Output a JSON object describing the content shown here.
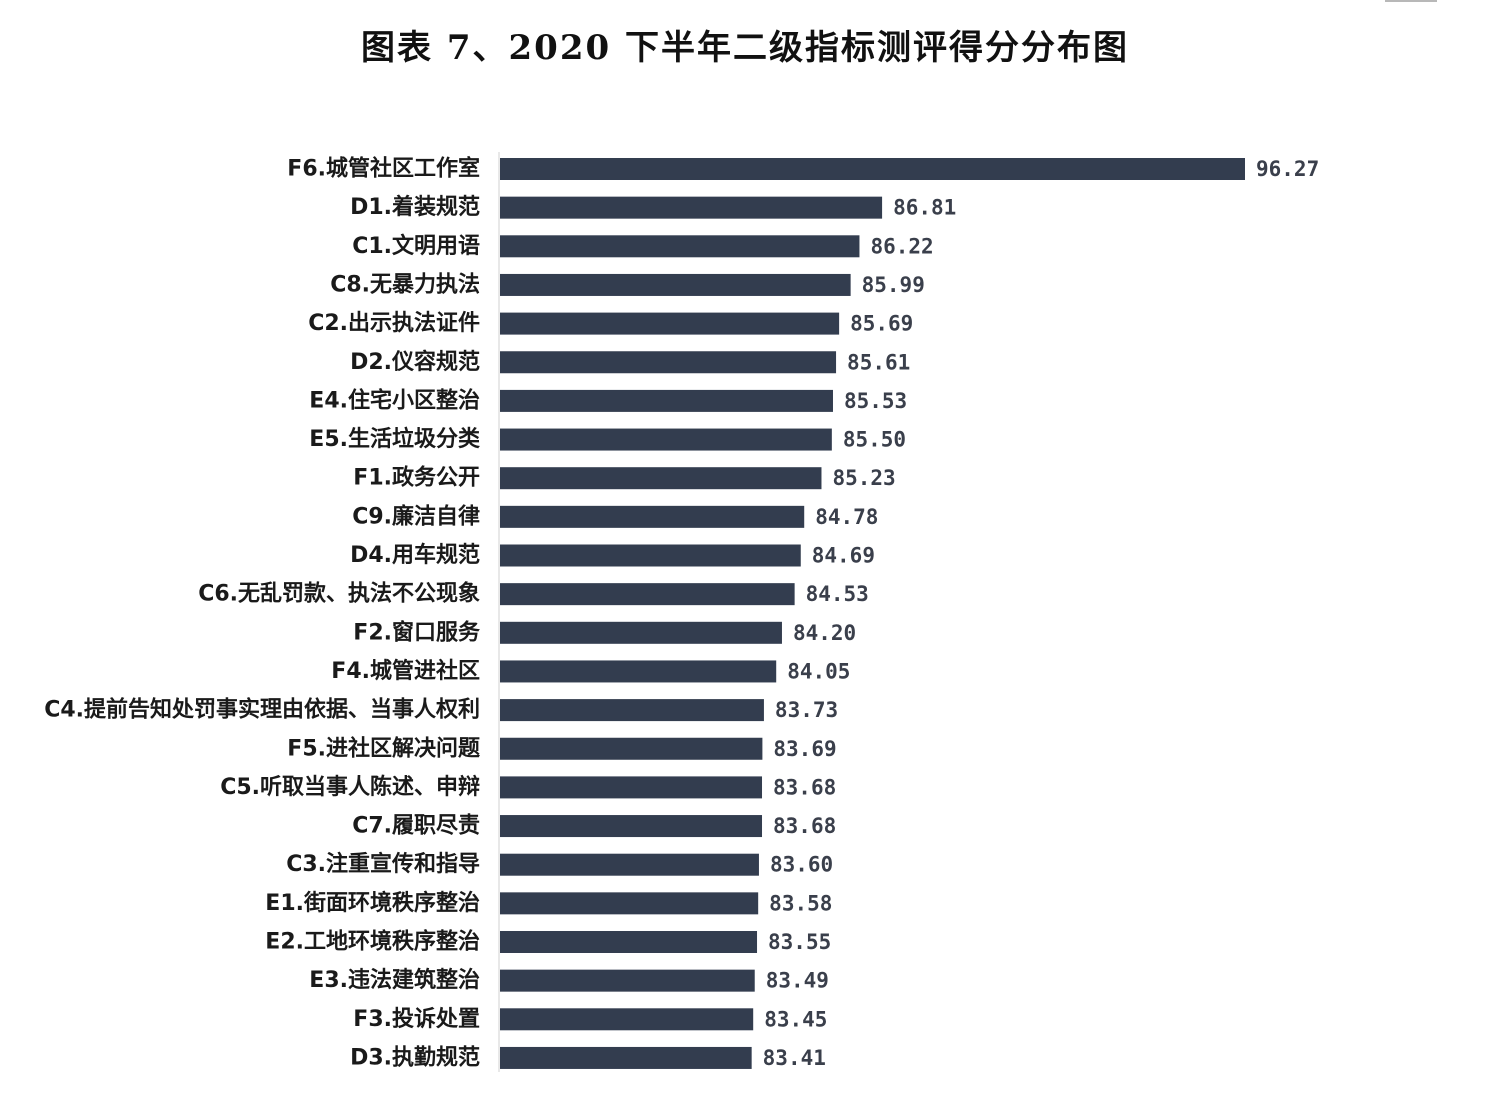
{
  "chart_data": {
    "type": "bar",
    "orientation": "horizontal",
    "title": "图表 7、2020 下半年二级指标测评得分分布图",
    "xlabel": "",
    "ylabel": "",
    "grid": false,
    "bar_color": "#333d4f",
    "value_label_color": "#3a3f4b",
    "categories": [
      "F6.城管社区工作室",
      "D1.着装规范",
      "C1.文明用语",
      "C8.无暴力执法",
      "C2.出示执法证件",
      "D2.仪容规范",
      "E4.住宅小区整治",
      "E5.生活垃圾分类",
      "F1.政务公开",
      "C9.廉洁自律",
      "D4.用车规范",
      "C6.无乱罚款、执法不公现象",
      "F2.窗口服务",
      "F4.城管进社区",
      "C4.提前告知处罚事实理由依据、当事人权利",
      "F5.进社区解决问题",
      "C5.听取当事人陈述、申辩",
      "C7.履职尽责",
      "C3.注重宣传和指导",
      "E1.街面环境秩序整治",
      "E2.工地环境秩序整治",
      "E3.违法建筑整治",
      "F3.投诉处置",
      "D3.执勤规范"
    ],
    "values": [
      96.27,
      86.81,
      86.22,
      85.99,
      85.69,
      85.61,
      85.53,
      85.5,
      85.23,
      84.78,
      84.69,
      84.53,
      84.2,
      84.05,
      83.73,
      83.69,
      83.68,
      83.68,
      83.6,
      83.58,
      83.55,
      83.49,
      83.45,
      83.41
    ],
    "value_labels": [
      "96.27",
      "86.81",
      "86.22",
      "85.99",
      "85.69",
      "85.61",
      "85.53",
      "85.50",
      "85.23",
      "84.78",
      "84.69",
      "84.53",
      "84.20",
      "84.05",
      "83.73",
      "83.69",
      "83.68",
      "83.68",
      "83.60",
      "83.58",
      "83.55",
      "83.49",
      "83.45",
      "83.41"
    ],
    "xlim": [
      76.85,
      96.27
    ]
  }
}
